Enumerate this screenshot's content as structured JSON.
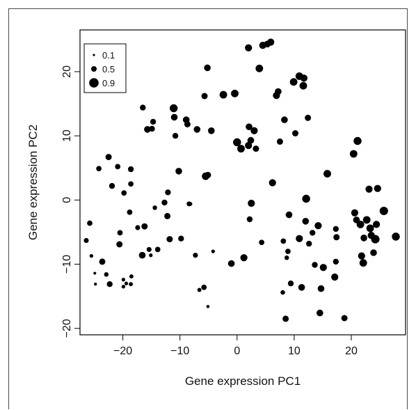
{
  "chart_data": {
    "type": "scatter",
    "title": "",
    "xlabel": "Gene expression PC1",
    "ylabel": "Gene expression PC2",
    "xlim": [
      -27.5,
      29.5
    ],
    "ylim": [
      -21,
      26.5
    ],
    "xticks": [
      -20,
      -10,
      0,
      10,
      20
    ],
    "xtick_labels": [
      "−20",
      "−10",
      "0",
      "10",
      "20"
    ],
    "yticks": [
      -20,
      -10,
      0,
      10,
      20
    ],
    "ytick_labels": [
      "−20",
      "−10",
      "0",
      "10",
      "20"
    ],
    "grid": false,
    "legend": {
      "placement": "top-left",
      "entries": [
        {
          "label": "0.1",
          "size": 0.1
        },
        {
          "label": "0.5",
          "size": 0.5
        },
        {
          "label": "0.9",
          "size": 0.9
        }
      ]
    },
    "point_color": "#000000",
    "points": [
      {
        "x": -26.4,
        "y": -6.3,
        "s": 0.35
      },
      {
        "x": -25.8,
        "y": -3.6,
        "s": 0.4
      },
      {
        "x": -25.5,
        "y": -8.7,
        "s": 0.2
      },
      {
        "x": -24.9,
        "y": -11.4,
        "s": 0.1
      },
      {
        "x": -24.8,
        "y": -13.1,
        "s": 0.12
      },
      {
        "x": -24.2,
        "y": 4.9,
        "s": 0.4
      },
      {
        "x": -23.6,
        "y": -9.6,
        "s": 0.5
      },
      {
        "x": -22.9,
        "y": -11.6,
        "s": 0.3
      },
      {
        "x": -22.5,
        "y": 6.7,
        "s": 0.5
      },
      {
        "x": -22.3,
        "y": -13.1,
        "s": 0.45
      },
      {
        "x": -21.9,
        "y": 2.2,
        "s": 0.45
      },
      {
        "x": -20.9,
        "y": 5.2,
        "s": 0.4
      },
      {
        "x": -20.6,
        "y": -6.9,
        "s": 0.5
      },
      {
        "x": -20.5,
        "y": -5.1,
        "s": 0.4
      },
      {
        "x": -19.8,
        "y": 1.1,
        "s": 0.4
      },
      {
        "x": -19.9,
        "y": -12.4,
        "s": 0.2
      },
      {
        "x": -19.9,
        "y": -13.5,
        "s": 0.2
      },
      {
        "x": -19.4,
        "y": -13.0,
        "s": 0.2
      },
      {
        "x": -18.8,
        "y": -1.9,
        "s": 0.4
      },
      {
        "x": -18.6,
        "y": 4.8,
        "s": 0.45
      },
      {
        "x": -18.6,
        "y": 2.5,
        "s": 0.4
      },
      {
        "x": -18.5,
        "y": -11.9,
        "s": 0.25
      },
      {
        "x": -18.6,
        "y": -13.1,
        "s": 0.25
      },
      {
        "x": -17.4,
        "y": -4.3,
        "s": 0.35
      },
      {
        "x": -16.6,
        "y": -8.6,
        "s": 0.55
      },
      {
        "x": -16.5,
        "y": 14.4,
        "s": 0.45
      },
      {
        "x": -16.2,
        "y": -4.1,
        "s": 0.5
      },
      {
        "x": -15.7,
        "y": 11.0,
        "s": 0.55
      },
      {
        "x": -15.4,
        "y": -7.7,
        "s": 0.35
      },
      {
        "x": -15.1,
        "y": -8.6,
        "s": 0.2
      },
      {
        "x": -14.9,
        "y": 11.1,
        "s": 0.45
      },
      {
        "x": -14.7,
        "y": 12.2,
        "s": 0.45
      },
      {
        "x": -14.4,
        "y": -1.2,
        "s": 0.3
      },
      {
        "x": -13.9,
        "y": -7.7,
        "s": 0.4
      },
      {
        "x": -12.7,
        "y": -0.4,
        "s": 0.45
      },
      {
        "x": -12.1,
        "y": 1.2,
        "s": 0.45
      },
      {
        "x": -12.2,
        "y": -2.5,
        "s": 0.5
      },
      {
        "x": -11.8,
        "y": -6.1,
        "s": 0.5
      },
      {
        "x": -11.1,
        "y": 14.3,
        "s": 0.7
      },
      {
        "x": -11.0,
        "y": 12.9,
        "s": 0.55
      },
      {
        "x": -10.8,
        "y": 10.0,
        "s": 0.45
      },
      {
        "x": -10.2,
        "y": 4.5,
        "s": 0.55
      },
      {
        "x": -9.8,
        "y": -6.0,
        "s": 0.45
      },
      {
        "x": -8.9,
        "y": 12.5,
        "s": 0.55
      },
      {
        "x": -8.7,
        "y": 11.8,
        "s": 0.5
      },
      {
        "x": -8.4,
        "y": -0.6,
        "s": 0.35
      },
      {
        "x": -8.2,
        "y": -0.6,
        "s": 0.25
      },
      {
        "x": -7.3,
        "y": -8.6,
        "s": 0.35
      },
      {
        "x": -7.0,
        "y": 11.0,
        "s": 0.55
      },
      {
        "x": -6.6,
        "y": -14.0,
        "s": 0.25
      },
      {
        "x": -5.8,
        "y": -13.6,
        "s": 0.4
      },
      {
        "x": -5.7,
        "y": 16.2,
        "s": 0.5
      },
      {
        "x": -5.5,
        "y": 3.7,
        "s": 0.65
      },
      {
        "x": -5.2,
        "y": 20.6,
        "s": 0.55
      },
      {
        "x": -5.1,
        "y": -16.6,
        "s": 0.15
      },
      {
        "x": -5.1,
        "y": 3.9,
        "s": 0.5
      },
      {
        "x": -4.5,
        "y": 10.8,
        "s": 0.55
      },
      {
        "x": -4.2,
        "y": -8.0,
        "s": 0.2
      },
      {
        "x": -2.4,
        "y": 16.4,
        "s": 0.65
      },
      {
        "x": -1.0,
        "y": -9.9,
        "s": 0.55
      },
      {
        "x": -0.4,
        "y": 16.6,
        "s": 0.65
      },
      {
        "x": 0.0,
        "y": 9.0,
        "s": 0.7
      },
      {
        "x": 0.7,
        "y": 8.0,
        "s": 0.65
      },
      {
        "x": 1.2,
        "y": -9.0,
        "s": 0.6
      },
      {
        "x": 2.0,
        "y": 8.5,
        "s": 0.6
      },
      {
        "x": 2.0,
        "y": 23.7,
        "s": 0.6
      },
      {
        "x": 2.1,
        "y": 11.4,
        "s": 0.55
      },
      {
        "x": 2.2,
        "y": -3.0,
        "s": 0.45
      },
      {
        "x": 2.4,
        "y": 9.3,
        "s": 0.55
      },
      {
        "x": 2.5,
        "y": -0.5,
        "s": 0.6
      },
      {
        "x": 3.0,
        "y": 10.8,
        "s": 0.6
      },
      {
        "x": 3.3,
        "y": 8.0,
        "s": 0.5
      },
      {
        "x": 3.9,
        "y": 20.5,
        "s": 0.65
      },
      {
        "x": 4.3,
        "y": -6.6,
        "s": 0.4
      },
      {
        "x": 4.5,
        "y": 24.1,
        "s": 0.6
      },
      {
        "x": 5.3,
        "y": 24.3,
        "s": 0.55
      },
      {
        "x": 5.9,
        "y": 24.6,
        "s": 0.6
      },
      {
        "x": 6.2,
        "y": 2.7,
        "s": 0.6
      },
      {
        "x": 6.9,
        "y": 16.3,
        "s": 0.6
      },
      {
        "x": 7.2,
        "y": 16.9,
        "s": 0.55
      },
      {
        "x": 7.5,
        "y": 9.1,
        "s": 0.5
      },
      {
        "x": 8.0,
        "y": -14.4,
        "s": 0.3
      },
      {
        "x": 8.1,
        "y": -6.4,
        "s": 0.4
      },
      {
        "x": 8.3,
        "y": 12.5,
        "s": 0.55
      },
      {
        "x": 8.5,
        "y": -18.5,
        "s": 0.5
      },
      {
        "x": 8.7,
        "y": -9.0,
        "s": 0.3
      },
      {
        "x": 8.9,
        "y": -8.0,
        "s": 0.4
      },
      {
        "x": 9.1,
        "y": -2.3,
        "s": 0.55
      },
      {
        "x": 9.4,
        "y": -13.0,
        "s": 0.45
      },
      {
        "x": 9.9,
        "y": 18.4,
        "s": 0.65
      },
      {
        "x": 10.2,
        "y": 10.4,
        "s": 0.5
      },
      {
        "x": 10.9,
        "y": 19.3,
        "s": 0.65
      },
      {
        "x": 10.9,
        "y": -6.0,
        "s": 0.6
      },
      {
        "x": 11.3,
        "y": -13.6,
        "s": 0.55
      },
      {
        "x": 11.6,
        "y": 17.8,
        "s": 0.65
      },
      {
        "x": 11.7,
        "y": 19.0,
        "s": 0.6
      },
      {
        "x": 12.0,
        "y": -3.3,
        "s": 0.55
      },
      {
        "x": 12.1,
        "y": 0.2,
        "s": 0.7
      },
      {
        "x": 12.4,
        "y": 12.8,
        "s": 0.5
      },
      {
        "x": 12.6,
        "y": -6.8,
        "s": 0.45
      },
      {
        "x": 13.2,
        "y": -5.1,
        "s": 0.45
      },
      {
        "x": 13.6,
        "y": -10.1,
        "s": 0.45
      },
      {
        "x": 14.2,
        "y": -4.0,
        "s": 0.6
      },
      {
        "x": 14.5,
        "y": -17.6,
        "s": 0.55
      },
      {
        "x": 14.7,
        "y": -13.8,
        "s": 0.55
      },
      {
        "x": 15.1,
        "y": -10.5,
        "s": 0.6
      },
      {
        "x": 15.8,
        "y": 4.1,
        "s": 0.65
      },
      {
        "x": 17.1,
        "y": -12.0,
        "s": 0.6
      },
      {
        "x": 17.3,
        "y": -9.6,
        "s": 0.45
      },
      {
        "x": 17.3,
        "y": -4.5,
        "s": 0.45
      },
      {
        "x": 17.4,
        "y": -5.8,
        "s": 0.5
      },
      {
        "x": 18.8,
        "y": -18.4,
        "s": 0.5
      },
      {
        "x": 20.4,
        "y": 7.2,
        "s": 0.65
      },
      {
        "x": 20.6,
        "y": -2.0,
        "s": 0.6
      },
      {
        "x": 20.9,
        "y": -3.1,
        "s": 0.55
      },
      {
        "x": 21.1,
        "y": 9.2,
        "s": 0.7
      },
      {
        "x": 21.6,
        "y": -3.8,
        "s": 0.65
      },
      {
        "x": 21.8,
        "y": -8.7,
        "s": 0.6
      },
      {
        "x": 22.1,
        "y": -9.8,
        "s": 0.65
      },
      {
        "x": 22.2,
        "y": -5.9,
        "s": 0.55
      },
      {
        "x": 22.7,
        "y": -3.1,
        "s": 0.65
      },
      {
        "x": 23.1,
        "y": 1.7,
        "s": 0.6
      },
      {
        "x": 23.3,
        "y": -4.4,
        "s": 0.65
      },
      {
        "x": 23.5,
        "y": -5.5,
        "s": 0.6
      },
      {
        "x": 23.9,
        "y": -8.2,
        "s": 0.55
      },
      {
        "x": 24.2,
        "y": -6.1,
        "s": 0.75
      },
      {
        "x": 24.4,
        "y": -3.8,
        "s": 0.6
      },
      {
        "x": 24.6,
        "y": 1.8,
        "s": 0.6
      },
      {
        "x": 25.7,
        "y": -1.7,
        "s": 0.75
      },
      {
        "x": 27.8,
        "y": -5.7,
        "s": 0.7
      }
    ]
  }
}
